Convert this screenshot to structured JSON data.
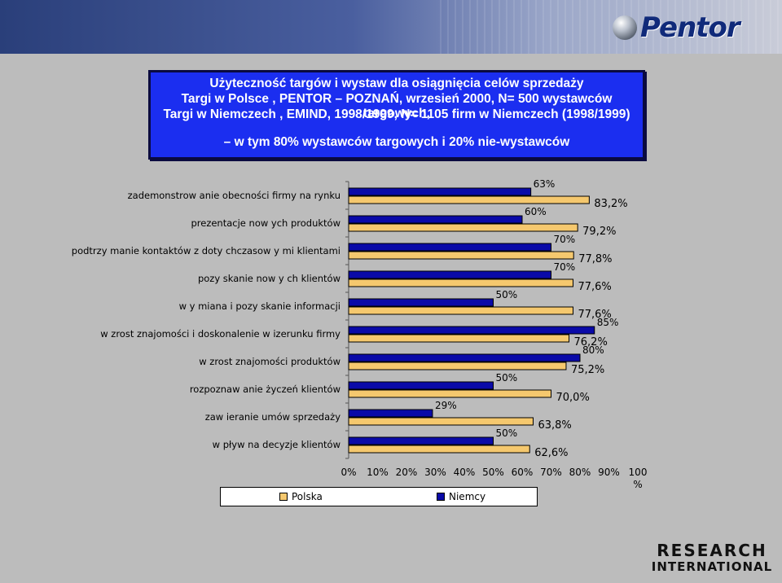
{
  "logo": {
    "text": "Pentor"
  },
  "title": {
    "line1": "Użyteczność targów i wystaw  dla osiągnięcia celów sprzedaży",
    "line2": "Targi w Polsce , PENTOR – POZNAŃ, wrzesień 2000,  N=  500 wystawców targowych,",
    "line3": "Targi w Niemczech , EMIND, 1998/1999, N= 1105 firm w  Niemczech (1998/1999)",
    "line4": "– w tym 80% wystawców targowych i 20% nie-wystawców"
  },
  "colors": {
    "polska": "#f5c86e",
    "niemcy": "#0a0aa8",
    "title_bg": "#1b2ef0"
  },
  "chart_data": {
    "type": "bar",
    "orientation": "horizontal",
    "categories": [
      "zademonstrow anie obecności firmy na rynku",
      "prezentacje now ych produktów",
      "podtrzy manie kontaktów  z doty chczasow y mi klientami",
      "pozy skanie now y ch klientów",
      "w y miana i pozy skanie informacji",
      "w zrost znajomości i doskonalenie w izerunku firmy",
      "w zrost znajomości produktów",
      "rozpoznaw anie życzeń klientów",
      "zaw ieranie umów  sprzedaży",
      "w pływ  na decyzje klientów"
    ],
    "series": [
      {
        "name": "Niemcy",
        "values": [
          63,
          60,
          70,
          70,
          50,
          85,
          80,
          50,
          29,
          50
        ],
        "labels": [
          "63%",
          "60%",
          "70%",
          "70%",
          "50%",
          "85%",
          "80%",
          "50%",
          "29%",
          "50%"
        ]
      },
      {
        "name": "Polska",
        "values": [
          83.2,
          79.2,
          77.8,
          77.6,
          77.6,
          76.2,
          75.2,
          70.0,
          63.8,
          62.6
        ],
        "labels": [
          "83,2%",
          "79,2%",
          "77,8%",
          "77,6%",
          "77,6%",
          "76,2%",
          "75,2%",
          "70,0%",
          "63,8%",
          "62,6%"
        ]
      }
    ],
    "x_ticks": [
      "0%",
      "10%",
      "20%",
      "30%",
      "40%",
      "50%",
      "60%",
      "70%",
      "80%",
      "90%",
      "100 %"
    ],
    "xlim": [
      0,
      100
    ],
    "legend": [
      "Polska",
      "Niemcy"
    ],
    "legend_position": "bottom"
  },
  "research_logo": {
    "line1": "RESEARCH",
    "line2": "INTERNATIONAL"
  }
}
